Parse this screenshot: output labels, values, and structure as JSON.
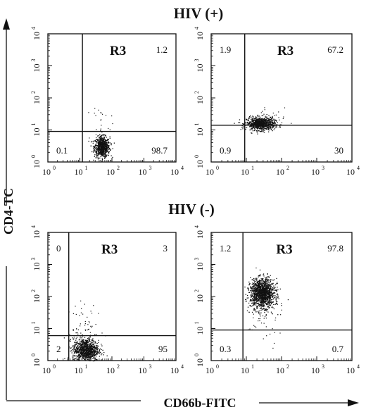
{
  "chart_data": [
    {
      "type": "scatter",
      "panel_group": "HIV (+)",
      "x_scale": "log",
      "y_scale": "log",
      "xlim": [
        1,
        10000
      ],
      "ylim": [
        1,
        10000
      ],
      "x_ticks": [
        "10",
        "10",
        "10",
        "10",
        "10"
      ],
      "x_tick_exponents": [
        "0",
        "1",
        "2",
        "3",
        "4"
      ],
      "y_ticks": [
        "10",
        "10",
        "10",
        "10",
        "10"
      ],
      "y_tick_exponents": [
        "0",
        "1",
        "2",
        "3",
        "4"
      ],
      "gate_label": "R3",
      "gate_x": 12,
      "gate_y": 9,
      "quadrants": {
        "upper_left": "",
        "upper_right": "1.2",
        "lower_left": "0.1",
        "lower_right": "98.7"
      },
      "clusters": [
        {
          "x_center": 48,
          "y_center": 3,
          "x_spread": 0.12,
          "y_spread": 0.16,
          "count": 700
        }
      ],
      "sparse": [
        {
          "x_center": 45,
          "y_center": 15,
          "x_spread": 0.15,
          "y_spread": 0.35,
          "count": 35
        }
      ]
    },
    {
      "type": "scatter",
      "panel_group": "HIV (+)",
      "x_scale": "log",
      "y_scale": "log",
      "xlim": [
        1,
        10000
      ],
      "ylim": [
        1,
        10000
      ],
      "x_ticks": [
        "10",
        "10",
        "10",
        "10",
        "10"
      ],
      "x_tick_exponents": [
        "0",
        "1",
        "2",
        "3",
        "4"
      ],
      "y_ticks": [
        "10",
        "10",
        "10",
        "10",
        "10"
      ],
      "y_tick_exponents": [
        "0",
        "1",
        "2",
        "3",
        "4"
      ],
      "gate_label": "R3",
      "gate_x": 9,
      "gate_y": 14,
      "quadrants": {
        "upper_left": "1.9",
        "upper_right": "67.2",
        "lower_left": "0.9",
        "lower_right": "30"
      },
      "clusters": [
        {
          "x_center": 25,
          "y_center": 16,
          "x_spread": 0.2,
          "y_spread": 0.1,
          "count": 800
        }
      ],
      "sparse": [
        {
          "x_center": 30,
          "y_center": 20,
          "x_spread": 0.3,
          "y_spread": 0.2,
          "count": 30
        }
      ]
    },
    {
      "type": "scatter",
      "panel_group": "HIV (-)",
      "x_scale": "log",
      "y_scale": "log",
      "xlim": [
        1,
        10000
      ],
      "ylim": [
        1,
        10000
      ],
      "x_ticks": [
        "10",
        "10",
        "10",
        "10",
        "10"
      ],
      "x_tick_exponents": [
        "0",
        "1",
        "2",
        "3",
        "4"
      ],
      "y_ticks": [
        "10",
        "10",
        "10",
        "10",
        "10"
      ],
      "y_tick_exponents": [
        "0",
        "1",
        "2",
        "3",
        "4"
      ],
      "gate_label": "R3",
      "gate_x": 4.5,
      "gate_y": 6,
      "quadrants": {
        "upper_left": "0",
        "upper_right": "3",
        "lower_left": "2",
        "lower_right": "95"
      },
      "clusters": [
        {
          "x_center": 15,
          "y_center": 2.2,
          "x_spread": 0.2,
          "y_spread": 0.18,
          "count": 900
        }
      ],
      "sparse": [
        {
          "x_center": 14,
          "y_center": 8,
          "x_spread": 0.25,
          "y_spread": 0.45,
          "count": 80
        }
      ]
    },
    {
      "type": "scatter",
      "panel_group": "HIV (-)",
      "x_scale": "log",
      "y_scale": "log",
      "xlim": [
        1,
        10000
      ],
      "ylim": [
        1,
        10000
      ],
      "x_ticks": [
        "10",
        "10",
        "10",
        "10",
        "10"
      ],
      "x_tick_exponents": [
        "0",
        "1",
        "2",
        "3",
        "4"
      ],
      "y_ticks": [
        "10",
        "10",
        "10",
        "10",
        "10"
      ],
      "y_tick_exponents": [
        "0",
        "1",
        "2",
        "3",
        "4"
      ],
      "gate_label": "R3",
      "gate_x": 8,
      "gate_y": 9,
      "quadrants": {
        "upper_left": "1.2",
        "upper_right": "97.8",
        "lower_left": "0.3",
        "lower_right": "0.7"
      },
      "clusters": [
        {
          "x_center": 28,
          "y_center": 130,
          "x_spread": 0.17,
          "y_spread": 0.22,
          "count": 1300
        }
      ],
      "sparse": [
        {
          "x_center": 30,
          "y_center": 40,
          "x_spread": 0.25,
          "y_spread": 0.55,
          "count": 90
        }
      ]
    }
  ],
  "labels": {
    "hiv_pos": "HIV (+)",
    "hiv_neg": "HIV (-)",
    "y_axis": "CD4-TC",
    "x_axis": "CD66b-FITC"
  }
}
